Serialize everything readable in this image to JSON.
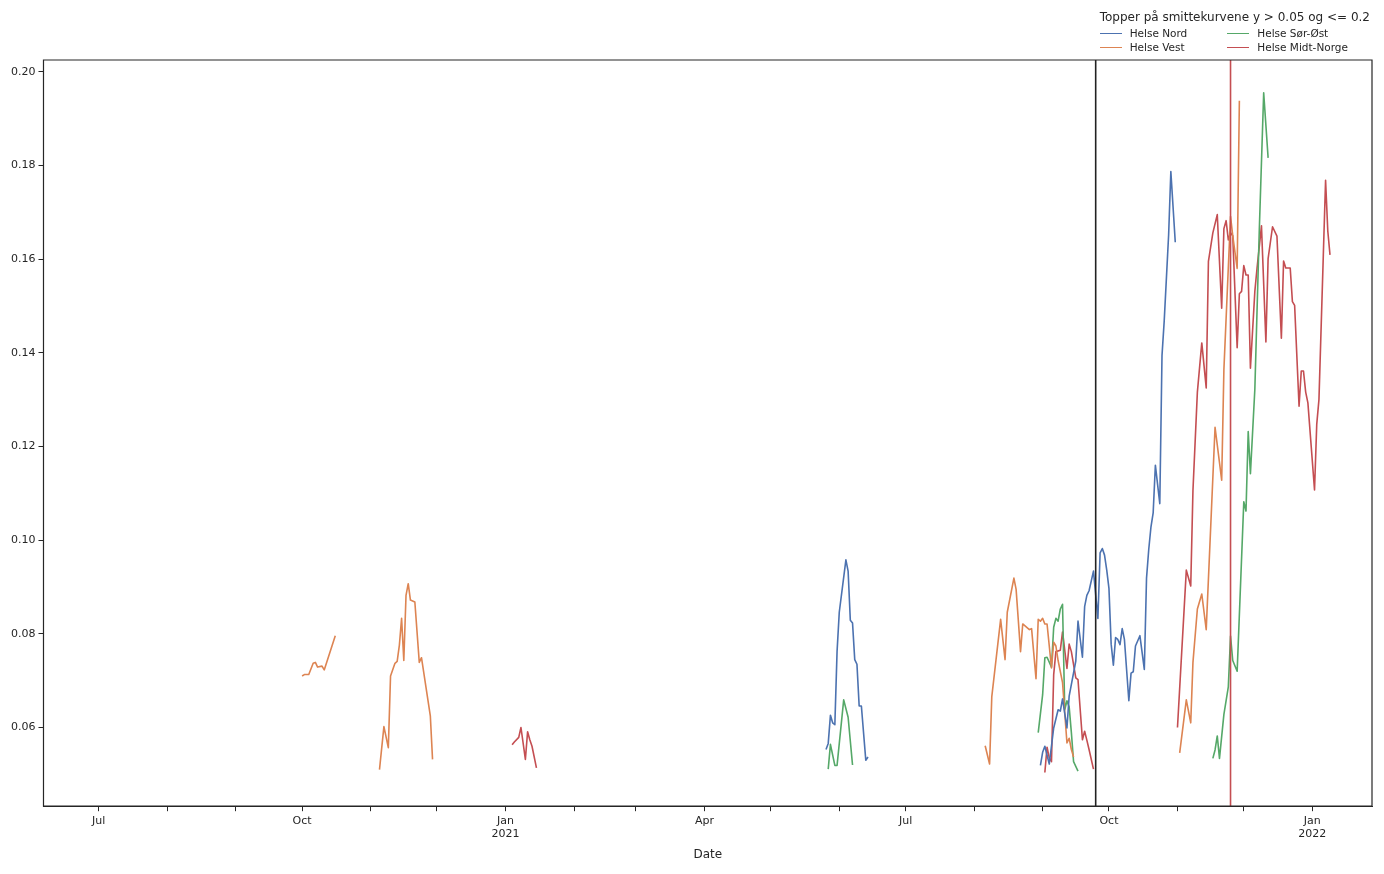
{
  "chart_data": {
    "type": "line",
    "xlabel": "Date",
    "legend_title": "Topper på smittekurvene y > 0.05 og <= 0.2",
    "legend": "top right",
    "grid": false,
    "xlim": [
      "2020-06-06",
      "2022-01-28"
    ],
    "ylim": [
      0.0432,
      0.2025
    ],
    "xticks": [
      {
        "value": "2020-07-01",
        "label": "Jul"
      },
      {
        "value": "2020-08-01",
        "label": null
      },
      {
        "value": "2020-09-01",
        "label": null
      },
      {
        "value": "2020-10-01",
        "label": "Oct"
      },
      {
        "value": "2020-11-01",
        "label": null
      },
      {
        "value": "2020-12-01",
        "label": null
      },
      {
        "value": "2021-01-01",
        "label": "Jan\n2021"
      },
      {
        "value": "2021-02-01",
        "label": null
      },
      {
        "value": "2021-03-01",
        "label": null
      },
      {
        "value": "2021-04-01",
        "label": "Apr"
      },
      {
        "value": "2021-05-01",
        "label": null
      },
      {
        "value": "2021-06-01",
        "label": null
      },
      {
        "value": "2021-07-01",
        "label": "Jul"
      },
      {
        "value": "2021-08-01",
        "label": null
      },
      {
        "value": "2021-09-01",
        "label": null
      },
      {
        "value": "2021-10-01",
        "label": "Oct"
      },
      {
        "value": "2021-11-01",
        "label": null
      },
      {
        "value": "2021-12-01",
        "label": null
      },
      {
        "value": "2022-01-01",
        "label": "Jan\n2022"
      }
    ],
    "yticks": [
      0.06,
      0.08,
      {
        "value": 0.1,
        "label": "0.10"
      },
      0.12,
      0.14,
      0.16,
      0.18,
      {
        "value": 0.2,
        "label": "0.20"
      }
    ],
    "ref_lines": [
      {
        "axis": "x",
        "value": "2021-09-25",
        "color": "#222222"
      },
      {
        "axis": "x",
        "value": "2021-11-25",
        "color": "#c44e52"
      }
    ],
    "series": [
      {
        "name": "Helse Nord",
        "color": "#4c72b0",
        "x": [
          "2021-05-26",
          "2021-05-27",
          "2021-05-28",
          "2021-05-29",
          "2021-05-30",
          "2021-05-31",
          "2021-06-01",
          "2021-06-04",
          "2021-06-05",
          "2021-06-06",
          "2021-06-07",
          "2021-06-08",
          "2021-06-09",
          "2021-06-10",
          "2021-06-11",
          "2021-06-13",
          "2021-06-14",
          "2021-07-15",
          "2021-08-31",
          "2021-09-01",
          "2021-09-02",
          "2021-09-04",
          "2021-09-06",
          "2021-09-08",
          "2021-09-09",
          "2021-09-10",
          "2021-09-12",
          "2021-09-13",
          "2021-09-16",
          "2021-09-17",
          "2021-09-19",
          "2021-09-20",
          "2021-09-21",
          "2021-09-22",
          "2021-09-24",
          "2021-09-26",
          "2021-09-27",
          "2021-09-28",
          "2021-09-29",
          "2021-09-30",
          "2021-10-01",
          "2021-10-02",
          "2021-10-03",
          "2021-10-04",
          "2021-10-05",
          "2021-10-06",
          "2021-10-07",
          "2021-10-08",
          "2021-10-10",
          "2021-10-11",
          "2021-10-12",
          "2021-10-13",
          "2021-10-15",
          "2021-10-17",
          "2021-10-18",
          "2021-10-19",
          "2021-10-20",
          "2021-10-21",
          "2021-10-22",
          "2021-10-24",
          "2021-10-25",
          "2021-10-26",
          "2021-10-28",
          "2021-10-29",
          "2021-10-31"
        ],
        "values": [
          0.0553,
          0.0566,
          0.0626,
          0.061,
          0.0606,
          0.0762,
          0.0846,
          0.0958,
          0.0934,
          0.0829,
          0.0823,
          0.0745,
          0.0735,
          0.0646,
          0.0646,
          0.053,
          0.0537,
          null,
          0.0519,
          0.0547,
          0.056,
          0.0522,
          0.0599,
          0.0638,
          0.0635,
          0.0661,
          0.0599,
          0.0667,
          0.0742,
          0.0827,
          0.075,
          0.0858,
          0.0882,
          0.0892,
          0.0934,
          0.0833,
          0.0973,
          0.0982,
          0.0968,
          0.0936,
          0.0897,
          0.0778,
          0.0733,
          0.0792,
          0.0788,
          0.0777,
          0.0811,
          0.0788,
          0.0657,
          0.0716,
          0.0719,
          0.0774,
          0.0796,
          0.0724,
          0.0919,
          0.098,
          0.1028,
          0.1058,
          0.116,
          0.1078,
          0.1394,
          0.1468,
          0.1652,
          0.1787,
          0.1636
        ]
      },
      {
        "name": "Helse Vest",
        "color": "#dd8452",
        "x": [
          "2020-10-01",
          "2020-10-02",
          "2020-10-04",
          "2020-10-06",
          "2020-10-07",
          "2020-10-08",
          "2020-10-10",
          "2020-10-11",
          "2020-10-16",
          "2020-10-25",
          "2020-11-05",
          "2020-11-07",
          "2020-11-09",
          "2020-11-10",
          "2020-11-12",
          "2020-11-13",
          "2020-11-14",
          "2020-11-15",
          "2020-11-16",
          "2020-11-17",
          "2020-11-18",
          "2020-11-19",
          "2020-11-21",
          "2020-11-23",
          "2020-11-24",
          "2020-11-28",
          "2020-11-29",
          "2021-03-01",
          "2021-08-06",
          "2021-08-08",
          "2021-08-09",
          "2021-08-13",
          "2021-08-15",
          "2021-08-16",
          "2021-08-19",
          "2021-08-20",
          "2021-08-22",
          "2021-08-23",
          "2021-08-26",
          "2021-08-27",
          "2021-08-29",
          "2021-08-30",
          "2021-08-31",
          "2021-09-01",
          "2021-09-02",
          "2021-09-03",
          "2021-09-05",
          "2021-09-06",
          "2021-09-07",
          "2021-09-08",
          "2021-09-10",
          "2021-09-12",
          "2021-09-13",
          "2021-09-14",
          "2021-09-15",
          "2021-10-15",
          "2021-11-02",
          "2021-11-05",
          "2021-11-07",
          "2021-11-08",
          "2021-11-10",
          "2021-11-12",
          "2021-11-14",
          "2021-11-18",
          "2021-11-21",
          "2021-11-22",
          "2021-11-25",
          "2021-11-26",
          "2021-11-28",
          "2021-11-29"
        ],
        "values": [
          0.071,
          0.0713,
          0.0713,
          0.0737,
          0.0739,
          0.0729,
          0.0731,
          0.0723,
          0.0796,
          null,
          0.051,
          0.0602,
          0.0557,
          0.071,
          0.0737,
          0.0741,
          0.0776,
          0.0833,
          0.0743,
          0.0882,
          0.0907,
          0.0872,
          0.0868,
          0.0739,
          0.0749,
          0.0625,
          0.0532,
          null,
          0.0561,
          0.0522,
          0.0666,
          0.0831,
          0.0745,
          0.0846,
          0.0919,
          0.0895,
          0.0762,
          0.0821,
          0.0809,
          0.0811,
          0.0704,
          0.0831,
          0.0827,
          0.0833,
          0.0821,
          0.0821,
          0.0727,
          0.0782,
          0.0774,
          0.0743,
          0.0696,
          0.0567,
          0.0577,
          0.0553,
          0.0537,
          null,
          0.0546,
          0.0659,
          0.061,
          0.0739,
          0.0853,
          0.0885,
          0.0809,
          0.1241,
          0.1128,
          0.1364,
          0.1691,
          0.165,
          0.158,
          0.1938
        ]
      },
      {
        "name": "Helse Sør-Øst",
        "color": "#55a868",
        "x": [
          "2021-05-27",
          "2021-05-28",
          "2021-05-30",
          "2021-05-31",
          "2021-06-03",
          "2021-06-05",
          "2021-06-07",
          "2021-07-15",
          "2021-08-30",
          "2021-09-01",
          "2021-09-02",
          "2021-09-03",
          "2021-09-05",
          "2021-09-06",
          "2021-09-07",
          "2021-09-08",
          "2021-09-09",
          "2021-09-10",
          "2021-09-11",
          "2021-09-12",
          "2021-09-13",
          "2021-09-14",
          "2021-09-15",
          "2021-09-17",
          "2021-10-15",
          "2021-11-17",
          "2021-11-18",
          "2021-11-19",
          "2021-11-20",
          "2021-11-22",
          "2021-11-24",
          "2021-11-25",
          "2021-11-26",
          "2021-11-28",
          "2021-12-01",
          "2021-12-02",
          "2021-12-03",
          "2021-12-04",
          "2021-12-06",
          "2021-12-08",
          "2021-12-10",
          "2021-12-12"
        ],
        "values": [
          0.0511,
          0.0564,
          0.0519,
          0.0519,
          0.0659,
          0.0622,
          0.052,
          null,
          0.0589,
          0.067,
          0.0749,
          0.075,
          0.0729,
          0.0814,
          0.0833,
          0.0827,
          0.0853,
          0.0863,
          0.0638,
          0.0657,
          0.0644,
          0.0589,
          0.0527,
          0.0507,
          null,
          0.0534,
          0.0552,
          0.0582,
          0.0534,
          0.0628,
          0.0687,
          0.0795,
          0.0743,
          0.072,
          0.1082,
          0.1062,
          0.1232,
          0.1142,
          0.1322,
          0.166,
          0.1955,
          0.1816
        ]
      },
      {
        "name": "Helse Midt-Norge",
        "color": "#c44e52",
        "x": [
          "2021-01-04",
          "2021-01-05",
          "2021-01-07",
          "2021-01-08",
          "2021-01-10",
          "2021-01-11",
          "2021-01-12",
          "2021-01-13",
          "2021-01-15",
          "2021-05-01",
          "2021-09-02",
          "2021-09-03",
          "2021-09-04",
          "2021-09-05",
          "2021-09-06",
          "2021-09-07",
          "2021-09-09",
          "2021-09-10",
          "2021-09-12",
          "2021-09-13",
          "2021-09-14",
          "2021-09-16",
          "2021-09-17",
          "2021-09-19",
          "2021-09-20",
          "2021-09-21",
          "2021-09-22",
          "2021-09-24",
          "2021-10-15",
          "2021-11-01",
          "2021-11-05",
          "2021-11-07",
          "2021-11-08",
          "2021-11-10",
          "2021-11-12",
          "2021-11-14",
          "2021-11-15",
          "2021-11-17",
          "2021-11-19",
          "2021-11-21",
          "2021-11-22",
          "2021-11-23",
          "2021-11-24",
          "2021-11-25",
          "2021-11-26",
          "2021-11-28",
          "2021-11-29",
          "2021-11-30",
          "2021-12-01",
          "2021-12-02",
          "2021-12-03",
          "2021-12-04",
          "2021-12-06",
          "2021-12-07",
          "2021-12-09",
          "2021-12-11",
          "2021-12-12",
          "2021-12-14",
          "2021-12-16",
          "2021-12-18",
          "2021-12-19",
          "2021-12-20",
          "2021-12-22",
          "2021-12-23",
          "2021-12-24",
          "2021-12-26",
          "2021-12-27",
          "2021-12-28",
          "2021-12-29",
          "2021-12-30",
          "2022-01-02",
          "2022-01-03",
          "2022-01-04",
          "2022-01-07",
          "2022-01-08",
          "2022-01-09"
        ],
        "values": [
          0.0563,
          0.0569,
          0.0579,
          0.06,
          0.0532,
          0.0591,
          0.0574,
          0.056,
          0.0514,
          null,
          0.0504,
          0.0558,
          0.0535,
          0.0527,
          0.0713,
          0.0762,
          0.0765,
          0.0804,
          0.0726,
          0.0778,
          0.0762,
          0.0706,
          0.0702,
          0.0574,
          0.0592,
          0.0573,
          0.0553,
          0.0511,
          null,
          0.06,
          0.0936,
          0.0902,
          0.1106,
          0.1316,
          0.1421,
          0.1325,
          0.1595,
          0.1656,
          0.1695,
          0.1495,
          0.1665,
          0.1682,
          0.1641,
          0.1656,
          0.165,
          0.1411,
          0.1526,
          0.1531,
          0.1586,
          0.1566,
          0.1566,
          0.1367,
          0.1531,
          0.1581,
          0.1671,
          0.1423,
          0.1601,
          0.1669,
          0.1649,
          0.1431,
          0.1596,
          0.1581,
          0.1581,
          0.1509,
          0.1501,
          0.1286,
          0.1361,
          0.1361,
          0.1316,
          0.1293,
          0.1107,
          0.1247,
          0.13,
          0.1768,
          0.166,
          0.1609
        ]
      }
    ]
  }
}
